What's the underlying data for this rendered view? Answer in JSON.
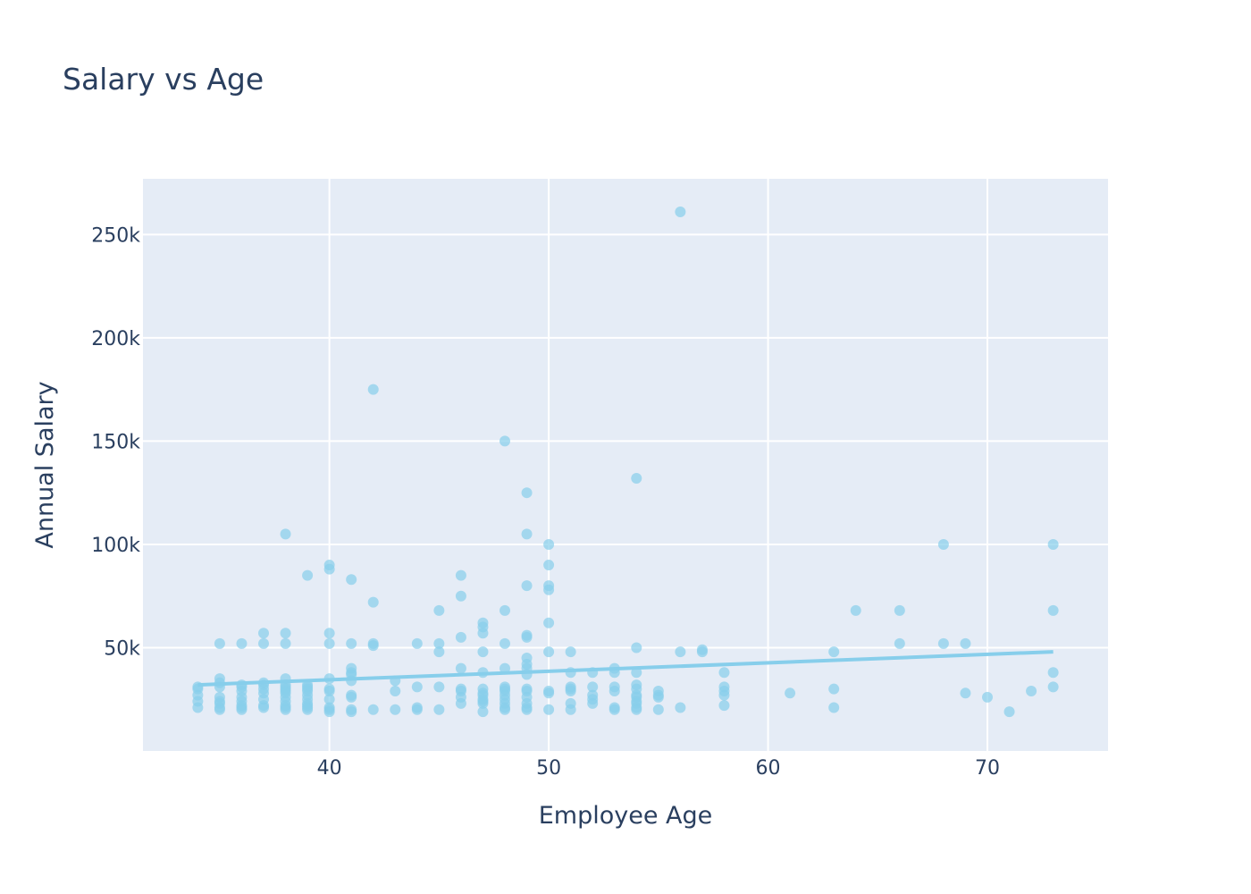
{
  "chart_data": {
    "type": "scatter",
    "title": "Salary vs Age",
    "xlabel": "Employee Age",
    "ylabel": "Annual Salary",
    "xlim": [
      31.5,
      75.5
    ],
    "ylim": [
      0,
      277000
    ],
    "x_ticks": [
      {
        "v": 40,
        "label": "40"
      },
      {
        "v": 50,
        "label": "50"
      },
      {
        "v": 60,
        "label": "60"
      },
      {
        "v": 70,
        "label": "70"
      }
    ],
    "y_ticks": [
      {
        "v": 50000,
        "label": "50k"
      },
      {
        "v": 100000,
        "label": "100k"
      },
      {
        "v": 150000,
        "label": "150k"
      },
      {
        "v": 200000,
        "label": "200k"
      },
      {
        "v": 250000,
        "label": "250k"
      }
    ],
    "grid": true,
    "marker_color": "#87ceeb",
    "plot_bg": "#e5ecf6",
    "series": [
      {
        "mode": "markers",
        "points": [
          [
            34,
            31000
          ],
          [
            34,
            30000
          ],
          [
            34,
            27000
          ],
          [
            34,
            24000
          ],
          [
            34,
            21000
          ],
          [
            35,
            52000
          ],
          [
            35,
            35000
          ],
          [
            35,
            33000
          ],
          [
            35,
            31000
          ],
          [
            35,
            26000
          ],
          [
            35,
            24000
          ],
          [
            35,
            23000
          ],
          [
            35,
            21000
          ],
          [
            35,
            20000
          ],
          [
            36,
            52000
          ],
          [
            36,
            32000
          ],
          [
            36,
            31000
          ],
          [
            36,
            29000
          ],
          [
            36,
            26000
          ],
          [
            36,
            24000
          ],
          [
            36,
            22000
          ],
          [
            36,
            21000
          ],
          [
            36,
            20000
          ],
          [
            37,
            57000
          ],
          [
            37,
            52000
          ],
          [
            37,
            33000
          ],
          [
            37,
            32000
          ],
          [
            37,
            30000
          ],
          [
            37,
            28000
          ],
          [
            37,
            25000
          ],
          [
            37,
            22000
          ],
          [
            37,
            21000
          ],
          [
            38,
            105000
          ],
          [
            38,
            57000
          ],
          [
            38,
            52000
          ],
          [
            38,
            35000
          ],
          [
            38,
            32000
          ],
          [
            38,
            31000
          ],
          [
            38,
            30000
          ],
          [
            38,
            29000
          ],
          [
            38,
            28000
          ],
          [
            38,
            26000
          ],
          [
            38,
            24000
          ],
          [
            38,
            22000
          ],
          [
            38,
            21000
          ],
          [
            38,
            20000
          ],
          [
            39,
            85000
          ],
          [
            39,
            32000
          ],
          [
            39,
            31000
          ],
          [
            39,
            30000
          ],
          [
            39,
            29000
          ],
          [
            39,
            27000
          ],
          [
            39,
            25000
          ],
          [
            39,
            23000
          ],
          [
            39,
            22000
          ],
          [
            39,
            21000
          ],
          [
            39,
            20000
          ],
          [
            40,
            90000
          ],
          [
            40,
            88000
          ],
          [
            40,
            57000
          ],
          [
            40,
            52000
          ],
          [
            40,
            35000
          ],
          [
            40,
            30000
          ],
          [
            40,
            29000
          ],
          [
            40,
            25000
          ],
          [
            40,
            21000
          ],
          [
            40,
            20000
          ],
          [
            40,
            19000
          ],
          [
            41,
            83000
          ],
          [
            41,
            52000
          ],
          [
            41,
            40000
          ],
          [
            41,
            38000
          ],
          [
            41,
            37000
          ],
          [
            41,
            34000
          ],
          [
            41,
            27000
          ],
          [
            41,
            26000
          ],
          [
            41,
            20000
          ],
          [
            41,
            19000
          ],
          [
            42,
            175000
          ],
          [
            42,
            72000
          ],
          [
            42,
            52000
          ],
          [
            42,
            51000
          ],
          [
            42,
            20000
          ],
          [
            43,
            34000
          ],
          [
            43,
            29000
          ],
          [
            43,
            20000
          ],
          [
            44,
            52000
          ],
          [
            44,
            31000
          ],
          [
            44,
            21000
          ],
          [
            44,
            20000
          ],
          [
            45,
            68000
          ],
          [
            45,
            52000
          ],
          [
            45,
            48000
          ],
          [
            45,
            31000
          ],
          [
            45,
            20000
          ],
          [
            46,
            85000
          ],
          [
            46,
            75000
          ],
          [
            46,
            55000
          ],
          [
            46,
            40000
          ],
          [
            46,
            30000
          ],
          [
            46,
            29000
          ],
          [
            46,
            26000
          ],
          [
            46,
            23000
          ],
          [
            47,
            62000
          ],
          [
            47,
            60000
          ],
          [
            47,
            57000
          ],
          [
            47,
            48000
          ],
          [
            47,
            38000
          ],
          [
            47,
            30000
          ],
          [
            47,
            28000
          ],
          [
            47,
            27000
          ],
          [
            47,
            25000
          ],
          [
            47,
            24000
          ],
          [
            47,
            23000
          ],
          [
            47,
            19000
          ],
          [
            48,
            150000
          ],
          [
            48,
            68000
          ],
          [
            48,
            52000
          ],
          [
            48,
            40000
          ],
          [
            48,
            31000
          ],
          [
            48,
            30000
          ],
          [
            48,
            29000
          ],
          [
            48,
            27000
          ],
          [
            48,
            25000
          ],
          [
            48,
            23000
          ],
          [
            48,
            21000
          ],
          [
            48,
            20000
          ],
          [
            49,
            125000
          ],
          [
            49,
            105000
          ],
          [
            49,
            80000
          ],
          [
            49,
            56000
          ],
          [
            49,
            55000
          ],
          [
            49,
            45000
          ],
          [
            49,
            42000
          ],
          [
            49,
            40000
          ],
          [
            49,
            37000
          ],
          [
            49,
            30000
          ],
          [
            49,
            29000
          ],
          [
            49,
            26000
          ],
          [
            49,
            23000
          ],
          [
            49,
            21000
          ],
          [
            49,
            20000
          ],
          [
            50,
            100000
          ],
          [
            50,
            90000
          ],
          [
            50,
            80000
          ],
          [
            50,
            78000
          ],
          [
            50,
            62000
          ],
          [
            50,
            48000
          ],
          [
            50,
            29000
          ],
          [
            50,
            28000
          ],
          [
            50,
            20000
          ],
          [
            51,
            48000
          ],
          [
            51,
            38000
          ],
          [
            51,
            31000
          ],
          [
            51,
            30000
          ],
          [
            51,
            29000
          ],
          [
            51,
            23000
          ],
          [
            51,
            20000
          ],
          [
            52,
            38000
          ],
          [
            52,
            31000
          ],
          [
            52,
            27000
          ],
          [
            52,
            25000
          ],
          [
            52,
            23000
          ],
          [
            53,
            40000
          ],
          [
            53,
            38000
          ],
          [
            53,
            31000
          ],
          [
            53,
            29000
          ],
          [
            53,
            21000
          ],
          [
            53,
            20000
          ],
          [
            54,
            132000
          ],
          [
            54,
            50000
          ],
          [
            54,
            38000
          ],
          [
            54,
            32000
          ],
          [
            54,
            30000
          ],
          [
            54,
            27000
          ],
          [
            54,
            26000
          ],
          [
            54,
            24000
          ],
          [
            54,
            23000
          ],
          [
            54,
            21000
          ],
          [
            54,
            20000
          ],
          [
            55,
            29000
          ],
          [
            55,
            27000
          ],
          [
            55,
            26000
          ],
          [
            55,
            20000
          ],
          [
            56,
            261000
          ],
          [
            56,
            48000
          ],
          [
            56,
            21000
          ],
          [
            57,
            49000
          ],
          [
            57,
            48000
          ],
          [
            58,
            38000
          ],
          [
            58,
            31000
          ],
          [
            58,
            29000
          ],
          [
            58,
            27000
          ],
          [
            58,
            22000
          ],
          [
            61,
            28000
          ],
          [
            63,
            48000
          ],
          [
            63,
            30000
          ],
          [
            63,
            21000
          ],
          [
            64,
            68000
          ],
          [
            66,
            68000
          ],
          [
            66,
            52000
          ],
          [
            68,
            100000
          ],
          [
            68,
            52000
          ],
          [
            69,
            52000
          ],
          [
            69,
            28000
          ],
          [
            70,
            26000
          ],
          [
            71,
            19000
          ],
          [
            72,
            29000
          ],
          [
            73,
            100000
          ],
          [
            73,
            68000
          ],
          [
            73,
            38000
          ],
          [
            73,
            31000
          ]
        ]
      },
      {
        "mode": "lines",
        "points": [
          [
            34,
            32000
          ],
          [
            73,
            48000
          ]
        ]
      }
    ]
  }
}
